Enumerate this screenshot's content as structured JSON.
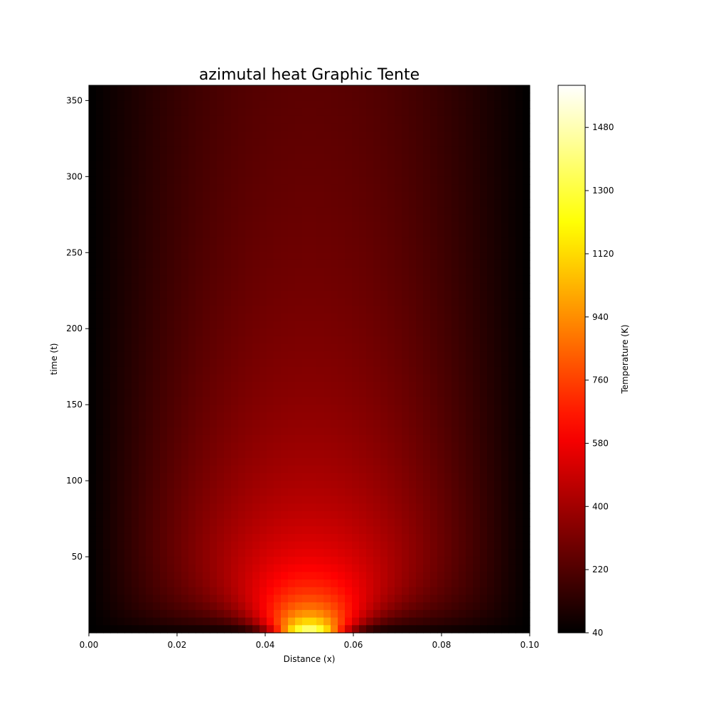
{
  "chart_data": {
    "type": "heatmap",
    "title": "azimutal heat Graphic Tente",
    "xlabel": "Distance (x)",
    "ylabel": "time (t)",
    "xlim": [
      0.0,
      0.1
    ],
    "ylim": [
      0,
      360
    ],
    "x_ticks": [
      0.0,
      0.02,
      0.04,
      0.06,
      0.08,
      0.1
    ],
    "x_tick_labels": [
      "0.00",
      "0.02",
      "0.04",
      "0.06",
      "0.08",
      "0.10"
    ],
    "y_ticks": [
      50,
      100,
      150,
      200,
      250,
      300,
      350
    ],
    "y_tick_labels": [
      "50",
      "100",
      "150",
      "200",
      "250",
      "300",
      "350"
    ],
    "colorbar": {
      "label": "Temperature (K)",
      "range": [
        40,
        1600
      ],
      "colormap": "hot",
      "ticks": [
        40,
        220,
        400,
        580,
        760,
        940,
        1120,
        1300,
        1480
      ],
      "tick_labels": [
        "40",
        "220",
        "400",
        "580",
        "760",
        "940",
        "1120",
        "1300",
        "1480"
      ]
    },
    "field": {
      "description_values": "Temperature field T(x,t): peak ~1600 K at x=0.05, t≈0; decays with time and toward x=0 and x=0.10 edges (≈40 K)",
      "x_center": 0.05,
      "peak_temperature": 1600,
      "boundary_temperature": 40,
      "samples": [
        {
          "x": 0.05,
          "t": 0,
          "T": 1600
        },
        {
          "x": 0.05,
          "t": 50,
          "T": 650
        },
        {
          "x": 0.05,
          "t": 100,
          "T": 480
        },
        {
          "x": 0.05,
          "t": 150,
          "T": 400
        },
        {
          "x": 0.05,
          "t": 200,
          "T": 340
        },
        {
          "x": 0.05,
          "t": 250,
          "T": 300
        },
        {
          "x": 0.05,
          "t": 300,
          "T": 270
        },
        {
          "x": 0.05,
          "t": 360,
          "T": 240
        },
        {
          "x": 0.02,
          "t": 100,
          "T": 260
        },
        {
          "x": 0.08,
          "t": 100,
          "T": 260
        },
        {
          "x": 0.0,
          "t": 200,
          "T": 40
        },
        {
          "x": 0.1,
          "t": 200,
          "T": 40
        }
      ]
    },
    "grid": false
  },
  "colors": {
    "background": "#ffffff",
    "axis": "#000000"
  }
}
